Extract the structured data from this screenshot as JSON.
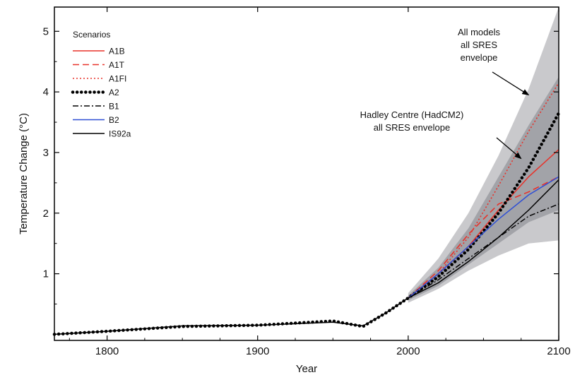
{
  "chart_data": {
    "type": "line",
    "title": "",
    "xlabel": "Year",
    "ylabel": "Temperature Change (°C)",
    "xlim": [
      1765,
      2100
    ],
    "ylim": [
      -0.1,
      5.4
    ],
    "x_ticks": [
      1800,
      1900,
      2000,
      2100
    ],
    "y_ticks": [
      1,
      2,
      3,
      4,
      5
    ],
    "grid": false,
    "legend": {
      "title": "Scenarios",
      "placement": "top-left"
    },
    "series": [
      {
        "name": "A1B",
        "color": "#e8322a",
        "dash": "solid",
        "points": [
          [
            2000,
            0.6
          ],
          [
            2020,
            1.0
          ],
          [
            2040,
            1.45
          ],
          [
            2060,
            2.05
          ],
          [
            2080,
            2.6
          ],
          [
            2100,
            3.05
          ]
        ]
      },
      {
        "name": "A1T",
        "color": "#e8322a",
        "dash": "dashed",
        "points": [
          [
            2000,
            0.6
          ],
          [
            2020,
            1.05
          ],
          [
            2040,
            1.65
          ],
          [
            2060,
            2.15
          ],
          [
            2080,
            2.35
          ],
          [
            2100,
            2.6
          ]
        ]
      },
      {
        "name": "A1FI",
        "color": "#e8322a",
        "dash": "dotted",
        "points": [
          [
            2000,
            0.6
          ],
          [
            2020,
            1.0
          ],
          [
            2040,
            1.6
          ],
          [
            2060,
            2.45
          ],
          [
            2080,
            3.35
          ],
          [
            2100,
            4.15
          ]
        ]
      },
      {
        "name": "A2",
        "color": "#000000",
        "dash": "bold-dotted",
        "points": [
          [
            1765,
            0.0
          ],
          [
            1800,
            0.05
          ],
          [
            1850,
            0.13
          ],
          [
            1900,
            0.15
          ],
          [
            1950,
            0.22
          ],
          [
            1970,
            0.13
          ],
          [
            1985,
            0.35
          ],
          [
            2000,
            0.6
          ],
          [
            2020,
            0.95
          ],
          [
            2040,
            1.4
          ],
          [
            2060,
            2.0
          ],
          [
            2080,
            2.75
          ],
          [
            2100,
            3.65
          ]
        ]
      },
      {
        "name": "B1",
        "color": "#000000",
        "dash": "dash-dot",
        "points": [
          [
            2000,
            0.6
          ],
          [
            2020,
            0.9
          ],
          [
            2040,
            1.25
          ],
          [
            2060,
            1.6
          ],
          [
            2080,
            1.95
          ],
          [
            2100,
            2.15
          ]
        ]
      },
      {
        "name": "B2",
        "color": "#2f4fd4",
        "dash": "solid",
        "points": [
          [
            2000,
            0.6
          ],
          [
            2020,
            1.0
          ],
          [
            2040,
            1.45
          ],
          [
            2060,
            1.9
          ],
          [
            2080,
            2.3
          ],
          [
            2100,
            2.6
          ]
        ]
      },
      {
        "name": "IS92a",
        "color": "#000000",
        "dash": "solid",
        "points": [
          [
            1765,
            0.0
          ],
          [
            1800,
            0.05
          ],
          [
            1850,
            0.14
          ],
          [
            1900,
            0.15
          ],
          [
            1950,
            0.2
          ],
          [
            1970,
            0.14
          ],
          [
            1985,
            0.35
          ],
          [
            2000,
            0.6
          ],
          [
            2020,
            0.85
          ],
          [
            2040,
            1.2
          ],
          [
            2060,
            1.6
          ],
          [
            2080,
            2.05
          ],
          [
            2100,
            2.55
          ]
        ]
      }
    ],
    "bands": [
      {
        "name": "All models all SRES envelope",
        "color": "#c9c9cc",
        "upper": [
          [
            2000,
            0.68
          ],
          [
            2020,
            1.25
          ],
          [
            2040,
            2.0
          ],
          [
            2060,
            2.95
          ],
          [
            2080,
            4.05
          ],
          [
            2100,
            5.4
          ]
        ],
        "lower": [
          [
            2000,
            0.52
          ],
          [
            2020,
            0.75
          ],
          [
            2040,
            1.05
          ],
          [
            2060,
            1.3
          ],
          [
            2080,
            1.5
          ],
          [
            2100,
            1.55
          ]
        ]
      },
      {
        "name": "Hadley Centre (HadCM2) all SRES envelope",
        "color": "#a2a3a8",
        "upper": [
          [
            2000,
            0.64
          ],
          [
            2020,
            1.1
          ],
          [
            2040,
            1.75
          ],
          [
            2060,
            2.6
          ],
          [
            2080,
            3.45
          ],
          [
            2100,
            4.25
          ]
        ],
        "lower": [
          [
            2000,
            0.56
          ],
          [
            2020,
            0.8
          ],
          [
            2040,
            1.15
          ],
          [
            2060,
            1.5
          ],
          [
            2080,
            1.85
          ],
          [
            2100,
            2.05
          ]
        ]
      }
    ],
    "annotations": [
      {
        "lines": [
          "All models",
          "all SRES",
          "envelope"
        ],
        "arrow_to": [
          2080,
          3.95
        ]
      },
      {
        "lines": [
          "Hadley Centre (HadCM2)",
          "all SRES envelope"
        ],
        "arrow_to": [
          2075,
          2.9
        ]
      }
    ]
  }
}
